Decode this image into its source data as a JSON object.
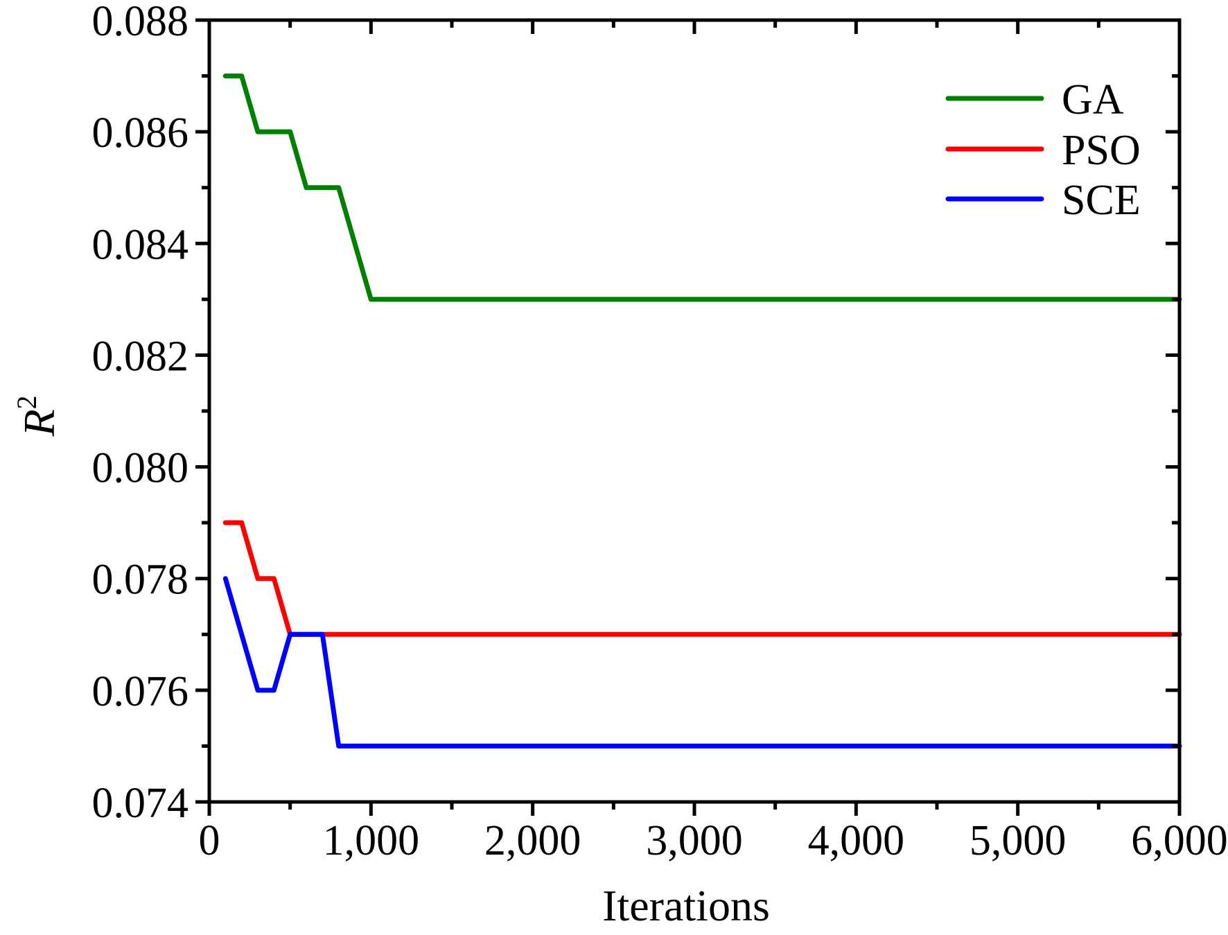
{
  "chart_data": {
    "type": "line",
    "title": "",
    "xlabel": "Iterations",
    "ylabel": "R",
    "ylabel_superscript": "2",
    "xlim": [
      0,
      6000
    ],
    "ylim": [
      0.074,
      0.088
    ],
    "xticks": [
      0,
      1000,
      2000,
      3000,
      4000,
      5000,
      6000
    ],
    "xtick_labels": [
      "0",
      "1,000",
      "2,000",
      "3,000",
      "4,000",
      "5,000",
      "6,000"
    ],
    "yticks": [
      0.074,
      0.076,
      0.078,
      0.08,
      0.082,
      0.084,
      0.086,
      0.088
    ],
    "ytick_labels": [
      "0.074",
      "0.076",
      "0.078",
      "0.080",
      "0.082",
      "0.084",
      "0.086",
      "0.088"
    ],
    "grid": false,
    "legend_position": "upper right",
    "series": [
      {
        "name": "GA",
        "color": "#008000",
        "x": [
          100,
          200,
          300,
          500,
          600,
          800,
          1000,
          6000
        ],
        "y": [
          0.087,
          0.087,
          0.086,
          0.086,
          0.085,
          0.085,
          0.083,
          0.083
        ]
      },
      {
        "name": "PSO",
        "color": "#ff0000",
        "x": [
          100,
          200,
          300,
          400,
          500,
          6000
        ],
        "y": [
          0.079,
          0.079,
          0.078,
          0.078,
          0.077,
          0.077
        ]
      },
      {
        "name": "SCE",
        "color": "#0000ff",
        "x": [
          100,
          300,
          400,
          500,
          700,
          800,
          6000
        ],
        "y": [
          0.078,
          0.076,
          0.076,
          0.077,
          0.077,
          0.075,
          0.075
        ]
      }
    ]
  }
}
